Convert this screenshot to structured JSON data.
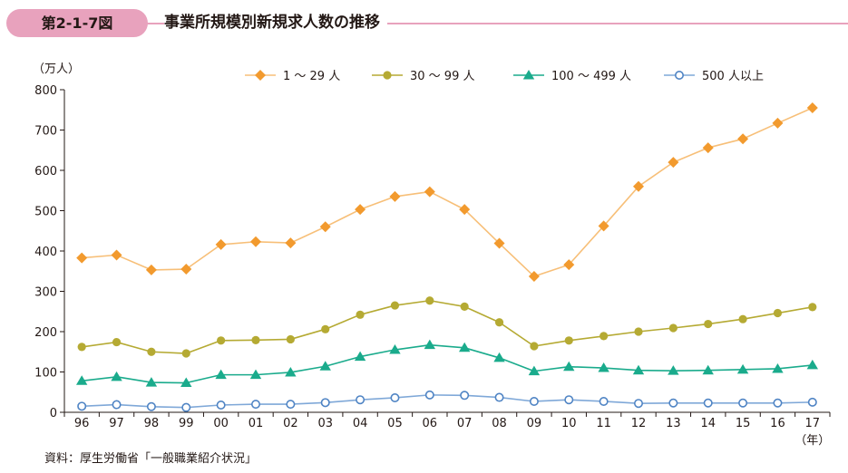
{
  "figure": {
    "badge": "第2-1-7図",
    "title": "事業所規模別新規求人数の推移",
    "source": "資料：厚生労働省「一般職業紹介状況」",
    "badge_color": "#e8a2bd"
  },
  "chart_data": {
    "type": "line",
    "title": "事業所規模別新規求人数の推移",
    "ylabel": "（万人）",
    "xlabel": "（年）",
    "ylim": [
      0,
      800
    ],
    "yticks": [
      "0",
      "100",
      "200",
      "300",
      "400",
      "500",
      "600",
      "700",
      "800"
    ],
    "categories": [
      "96",
      "97",
      "98",
      "99",
      "00",
      "01",
      "02",
      "03",
      "04",
      "05",
      "06",
      "07",
      "08",
      "09",
      "10",
      "11",
      "12",
      "13",
      "14",
      "15",
      "16",
      "17"
    ],
    "legend_position": "top",
    "grid": false,
    "series": [
      {
        "name": "1 ～ 29 人",
        "marker": "diamond",
        "color": "#f29a2e",
        "line_color": "#f7bf78",
        "values": [
          383,
          390,
          353,
          355,
          416,
          423,
          420,
          460,
          503,
          535,
          547,
          503,
          419,
          337,
          366,
          462,
          560,
          620,
          656,
          678,
          717,
          755
        ]
      },
      {
        "name": "30 ～ 99 人",
        "marker": "circle",
        "color": "#b5aa33",
        "line_color": "#b5aa33",
        "values": [
          162,
          174,
          150,
          146,
          178,
          179,
          181,
          206,
          242,
          265,
          277,
          262,
          223,
          164,
          178,
          189,
          200,
          209,
          219,
          231,
          246,
          261
        ]
      },
      {
        "name": "100 ～ 499 人",
        "marker": "triangle",
        "color": "#1aab8c",
        "line_color": "#1aab8c",
        "values": [
          78,
          88,
          74,
          73,
          93,
          93,
          99,
          114,
          138,
          155,
          167,
          160,
          135,
          102,
          113,
          110,
          104,
          103,
          104,
          106,
          108,
          117
        ]
      },
      {
        "name": "500 人以上",
        "marker": "open-circle",
        "color": "#4f84c4",
        "line_color": "#7fa8d8",
        "values": [
          15,
          19,
          14,
          12,
          18,
          20,
          20,
          24,
          31,
          36,
          43,
          42,
          37,
          27,
          31,
          27,
          22,
          23,
          23,
          23,
          23,
          25
        ]
      }
    ]
  }
}
